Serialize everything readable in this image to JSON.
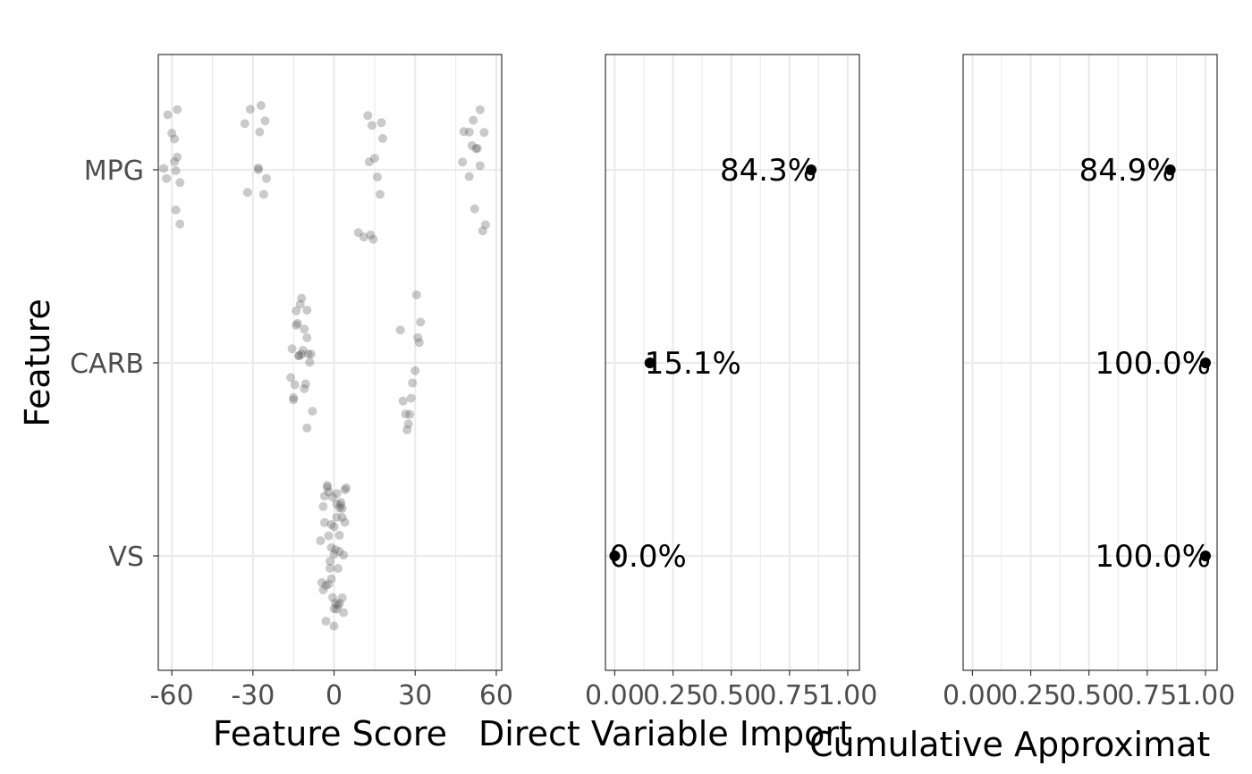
{
  "colors": {
    "point": "#000000",
    "jitter": "#595959",
    "grid": "#ebebeb",
    "frame": "#333333",
    "tick_text": "#4d4d4d"
  },
  "y_axis": {
    "label": "Feature",
    "categories": [
      "MPG",
      "CARB",
      "VS"
    ]
  },
  "chart_data": [
    {
      "type": "scatter",
      "name": "feature-score",
      "xlabel": "Feature Score",
      "xlim": [
        -65,
        62
      ],
      "xticks": [
        -60,
        -30,
        0,
        30,
        60
      ],
      "xtick_labels": [
        "-60",
        "-30",
        "0",
        "30",
        "60"
      ],
      "categories": [
        "MPG",
        "CARB",
        "VS"
      ],
      "points": {
        "MPG": [
          -63,
          -62,
          -61.5,
          -60,
          -59,
          -58.5,
          -58,
          -57,
          -57,
          -58,
          -59,
          -58.5,
          -32,
          -31,
          -28,
          -27.5,
          -26,
          -25.5,
          -25,
          -28,
          -33,
          -27,
          9,
          11,
          12.5,
          13,
          13.5,
          14,
          15,
          16,
          17,
          18,
          17.5,
          14.5,
          47.5,
          48,
          50,
          51,
          51.5,
          52,
          52.5,
          53,
          54,
          55,
          55.5,
          56,
          54,
          50
        ],
        "CARB": [
          -16,
          -15.5,
          -15,
          -14.5,
          -14,
          -13.5,
          -13,
          -12.5,
          -12,
          -11.5,
          -11,
          -10.5,
          -10,
          -10,
          -9.5,
          -9,
          -8.5,
          -8,
          -13,
          -12,
          -11,
          -14,
          -15,
          -10,
          24.5,
          25.5,
          26.5,
          27,
          27.5,
          28,
          28.5,
          29,
          30,
          30.5,
          31,
          31.5,
          32
        ],
        "VS": [
          -5,
          -4.5,
          -4,
          -3.5,
          -3,
          -2.5,
          -2,
          -1.5,
          -1,
          -0.5,
          0,
          0.5,
          1,
          1.5,
          2,
          2.5,
          3,
          3.5,
          4,
          4.5,
          -4,
          -3,
          -2,
          -1,
          0,
          1,
          2,
          3,
          4,
          -3.5,
          -2.5,
          -1.5,
          0.5,
          1.5,
          2.5,
          3.5,
          -2,
          -1,
          0,
          1,
          2,
          3,
          0,
          -0.5,
          1,
          2
        ]
      }
    },
    {
      "type": "scatter",
      "name": "direct-variable-importance",
      "xlabel": "Direct Variable Import",
      "xlim": [
        -0.04,
        1.05
      ],
      "xticks": [
        0,
        0.25,
        0.5,
        0.75,
        1
      ],
      "xtick_labels": [
        "0.00",
        "0.25",
        "0.50",
        "0.75",
        "1.00"
      ],
      "categories": [
        "MPG",
        "CARB",
        "VS"
      ],
      "values": [
        0.843,
        0.151,
        0.0
      ],
      "labels": [
        "84.3%",
        "15.1%",
        "0.0%"
      ]
    },
    {
      "type": "scatter",
      "name": "cumulative-approximation",
      "xlabel": "Cumulative Approximat",
      "xlim": [
        -0.04,
        1.05
      ],
      "xticks": [
        0,
        0.25,
        0.5,
        0.75,
        1
      ],
      "xtick_labels": [
        "0.00",
        "0.25",
        "0.50",
        "0.75",
        "1.00"
      ],
      "categories": [
        "MPG",
        "CARB",
        "VS"
      ],
      "values": [
        0.849,
        1.0,
        1.0
      ],
      "labels": [
        "84.9%",
        "100.0%",
        "100.0%"
      ]
    }
  ]
}
